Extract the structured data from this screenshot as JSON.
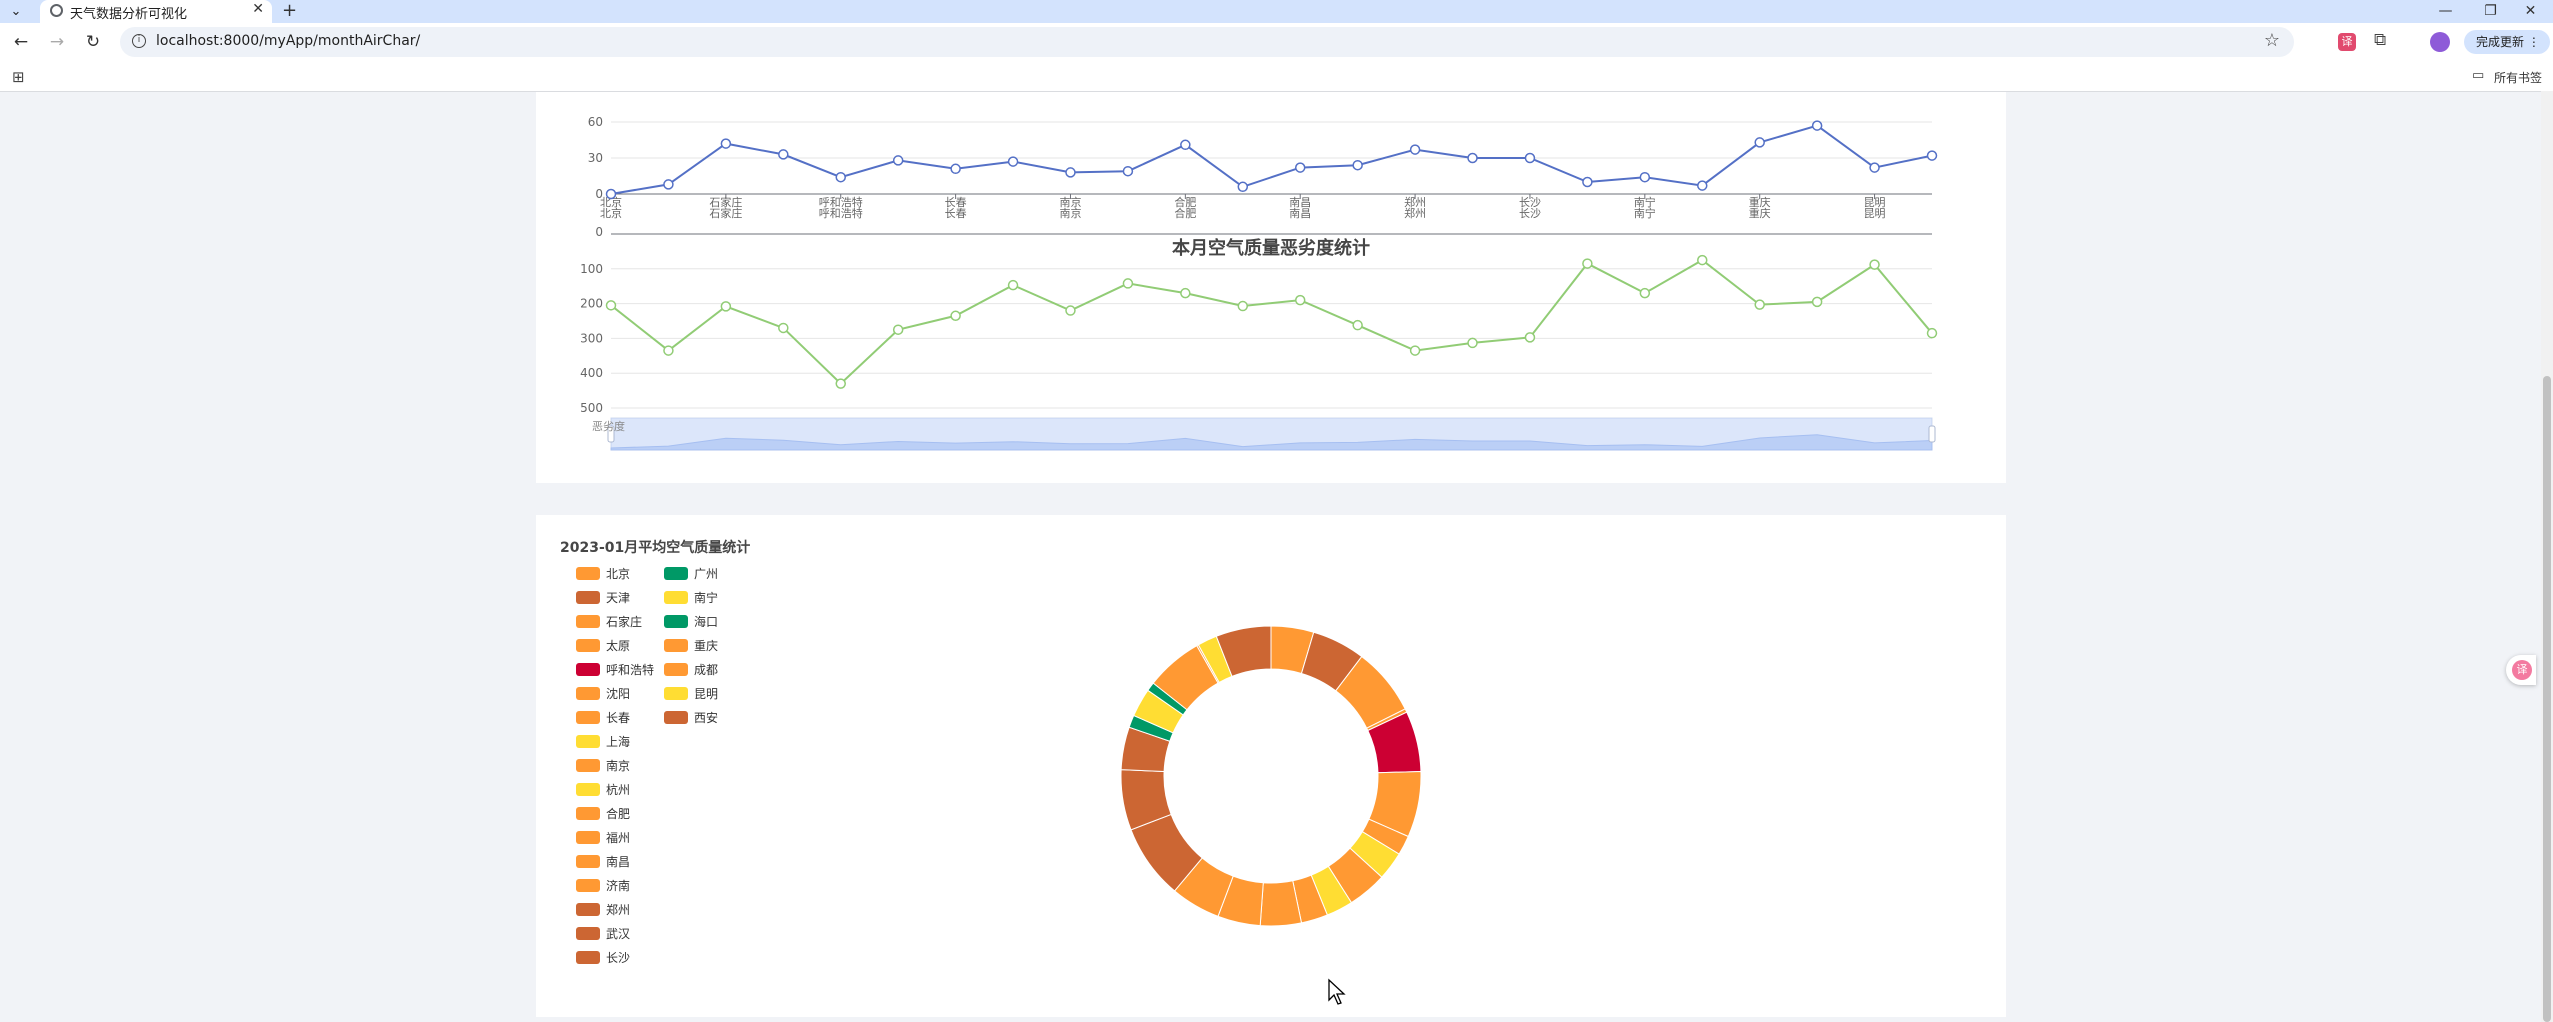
{
  "browser": {
    "tab_menu_icon": "chevron-down-icon",
    "tab_title": "天气数据分析可视化",
    "tab_close": "✕",
    "new_tab": "+",
    "url": "localhost:8000/myApp/monthAirChar/",
    "update_button": "完成更新",
    "bookmarks_label": "所有书签",
    "window_controls": {
      "minimize": "—",
      "restore": "❐",
      "close": "✕"
    }
  },
  "chart_data": [
    {
      "type": "line",
      "title": "",
      "cities": [
        "北京",
        "天津",
        "石家庄",
        "太原",
        "呼和浩特",
        "沈阳",
        "长春",
        "上海",
        "南京",
        "杭州",
        "合肥",
        "福州",
        "南昌",
        "济南",
        "郑州",
        "武汉",
        "长沙",
        "广州",
        "南宁",
        "海口",
        "重庆",
        "成都",
        "昆明",
        "西安"
      ],
      "tick_labels": [
        "北京",
        "石家庄",
        "呼和浩特",
        "长春",
        "南京",
        "合肥",
        "南昌",
        "郑州",
        "长沙",
        "南宁",
        "重庆",
        "昆明"
      ],
      "values": [
        0,
        8,
        42,
        33,
        14,
        28,
        21,
        27,
        18,
        19,
        41,
        6,
        22,
        24,
        37,
        30,
        30,
        10,
        14,
        7,
        43,
        57,
        22,
        32
      ],
      "yticks": [
        0,
        30,
        60
      ],
      "ylim": [
        0,
        60
      ],
      "color": "#5470c6"
    },
    {
      "type": "line",
      "title": "本月空气质量恶劣度统计",
      "values": [
        205,
        335,
        208,
        270,
        430,
        275,
        235,
        147,
        220,
        142,
        170,
        207,
        190,
        262,
        335,
        313,
        297,
        85,
        170,
        75,
        203,
        195,
        88,
        285
      ],
      "yticks": [
        100,
        200,
        300,
        400,
        500
      ],
      "ylim": [
        0,
        500
      ],
      "inverse": true,
      "color": "#91cc75",
      "datazoom_label": "恶劣度"
    },
    {
      "type": "pie",
      "title": "2023-01月平均空气质量统计",
      "legend_col1": [
        {
          "name": "北京",
          "color": "#ff9933"
        },
        {
          "name": "天津",
          "color": "#cc6633"
        },
        {
          "name": "石家庄",
          "color": "#ff9933"
        },
        {
          "name": "太原",
          "color": "#ff9933"
        },
        {
          "name": "呼和浩特",
          "color": "#cc0033"
        },
        {
          "name": "沈阳",
          "color": "#ff9933"
        },
        {
          "name": "长春",
          "color": "#ff9933"
        },
        {
          "name": "上海",
          "color": "#ffdd33"
        },
        {
          "name": "南京",
          "color": "#ff9933"
        },
        {
          "name": "杭州",
          "color": "#ffdd33"
        },
        {
          "name": "合肥",
          "color": "#ff9933"
        },
        {
          "name": "福州",
          "color": "#ff9933"
        },
        {
          "name": "南昌",
          "color": "#ff9933"
        },
        {
          "name": "济南",
          "color": "#ff9933"
        },
        {
          "name": "郑州",
          "color": "#cc6633"
        },
        {
          "name": "武汉",
          "color": "#cc6633"
        },
        {
          "name": "长沙",
          "color": "#cc6633"
        }
      ],
      "legend_col2": [
        {
          "name": "广州",
          "color": "#009966"
        },
        {
          "name": "南宁",
          "color": "#ffdd33"
        },
        {
          "name": "海口",
          "color": "#009966"
        },
        {
          "name": "重庆",
          "color": "#ff9933"
        },
        {
          "name": "成都",
          "color": "#ff9933"
        },
        {
          "name": "昆明",
          "color": "#ffdd33"
        },
        {
          "name": "西安",
          "color": "#cc6633"
        }
      ],
      "slices": [
        {
          "name": "北京",
          "value": 120,
          "color": "#ff9933"
        },
        {
          "name": "天津",
          "value": 150,
          "color": "#cc6633"
        },
        {
          "name": "石家庄",
          "value": 190,
          "color": "#ff9933"
        },
        {
          "name": "太原",
          "value": 10,
          "color": "#ff9933"
        },
        {
          "name": "呼和浩特",
          "value": 170,
          "color": "#cc0033"
        },
        {
          "name": "沈阳",
          "value": 185,
          "color": "#ff9933"
        },
        {
          "name": "长春",
          "value": 55,
          "color": "#ff9933"
        },
        {
          "name": "上海",
          "value": 80,
          "color": "#ffdd33"
        },
        {
          "name": "南京",
          "value": 110,
          "color": "#ff9933"
        },
        {
          "name": "杭州",
          "value": 75,
          "color": "#ffdd33"
        },
        {
          "name": "合肥",
          "value": 75,
          "color": "#ff9933"
        },
        {
          "name": "福州",
          "value": 115,
          "color": "#ff9933"
        },
        {
          "name": "南昌",
          "value": 120,
          "color": "#ff9933"
        },
        {
          "name": "济南",
          "value": 140,
          "color": "#ff9933"
        },
        {
          "name": "郑州",
          "value": 210,
          "color": "#cc6633"
        },
        {
          "name": "武汉",
          "value": 170,
          "color": "#cc6633"
        },
        {
          "name": "长沙",
          "value": 120,
          "color": "#cc6633"
        },
        {
          "name": "广州",
          "value": 35,
          "color": "#009966"
        },
        {
          "name": "南宁",
          "value": 80,
          "color": "#ffdd33"
        },
        {
          "name": "海口",
          "value": 25,
          "color": "#009966"
        },
        {
          "name": "重庆",
          "value": 160,
          "color": "#ff9933"
        },
        {
          "name": "成都",
          "value": 5,
          "color": "#ff9933"
        },
        {
          "name": "昆明",
          "value": 55,
          "color": "#ffdd33"
        },
        {
          "name": "西安",
          "value": 155,
          "color": "#cc6633"
        }
      ]
    }
  ]
}
